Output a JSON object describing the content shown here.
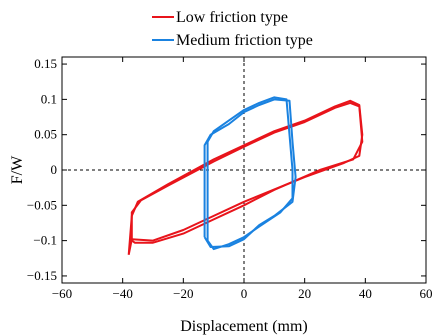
{
  "chart_data": {
    "type": "line",
    "xlabel": "Displacement (mm)",
    "ylabel": "F/W",
    "xlim": [
      -60,
      60
    ],
    "ylim": [
      -0.16,
      0.16
    ],
    "x_ticks": [
      -60,
      -40,
      -20,
      0,
      20,
      40,
      60
    ],
    "x_tick_labels": [
      "−60",
      "−40",
      "−20",
      "0",
      "20",
      "40",
      "60"
    ],
    "y_ticks": [
      -0.15,
      -0.1,
      -0.05,
      0,
      0.05,
      0.1,
      0.15
    ],
    "y_tick_labels": [
      "−0.15",
      "−0.1",
      "−0.05",
      "0",
      "0.05",
      "0.1",
      "0.15"
    ],
    "grid": false,
    "zero_lines": "dashed",
    "legend_position": "top, outside plot",
    "series": [
      {
        "name": "Low friction type",
        "color": "#e8141b",
        "loops": [
          [
            [
              -38,
              -0.12
            ],
            [
              -37,
              -0.065
            ],
            [
              -35,
              -0.045
            ],
            [
              -25,
              -0.02
            ],
            [
              -10,
              0.015
            ],
            [
              0,
              0.035
            ],
            [
              10,
              0.055
            ],
            [
              20,
              0.07
            ],
            [
              30,
              0.09
            ],
            [
              35,
              0.098
            ],
            [
              38,
              0.092
            ],
            [
              39,
              0.05
            ],
            [
              38,
              0.02
            ],
            [
              33,
              0.01
            ],
            [
              20,
              -0.01
            ],
            [
              0,
              -0.045
            ],
            [
              -10,
              -0.065
            ],
            [
              -20,
              -0.085
            ],
            [
              -30,
              -0.1
            ],
            [
              -37,
              -0.098
            ],
            [
              -38,
              -0.12
            ]
          ],
          [
            [
              -37,
              -0.1
            ],
            [
              -37,
              -0.06
            ],
            [
              -34,
              -0.043
            ],
            [
              -25,
              -0.022
            ],
            [
              -10,
              0.012
            ],
            [
              0,
              0.033
            ],
            [
              10,
              0.053
            ],
            [
              20,
              0.068
            ],
            [
              30,
              0.088
            ],
            [
              35,
              0.095
            ],
            [
              38,
              0.09
            ],
            [
              39,
              0.04
            ],
            [
              36,
              0.015
            ],
            [
              25,
              0.0
            ],
            [
              10,
              -0.028
            ],
            [
              0,
              -0.05
            ],
            [
              -10,
              -0.07
            ],
            [
              -20,
              -0.09
            ],
            [
              -30,
              -0.103
            ],
            [
              -36,
              -0.103
            ],
            [
              -37,
              -0.1
            ]
          ]
        ]
      },
      {
        "name": "Medium friction type",
        "color": "#1a82e0",
        "loops": [
          [
            [
              -12,
              -0.1
            ],
            [
              -12,
              0.04
            ],
            [
              -10,
              0.055
            ],
            [
              -5,
              0.07
            ],
            [
              0,
              0.085
            ],
            [
              5,
              0.095
            ],
            [
              10,
              0.103
            ],
            [
              14,
              0.1
            ],
            [
              15,
              0.05
            ],
            [
              16,
              0.0
            ],
            [
              16,
              -0.04
            ],
            [
              12,
              -0.06
            ],
            [
              5,
              -0.08
            ],
            [
              0,
              -0.095
            ],
            [
              -5,
              -0.105
            ],
            [
              -10,
              -0.112
            ],
            [
              -12,
              -0.1
            ]
          ],
          [
            [
              -13,
              -0.095
            ],
            [
              -13,
              0.035
            ],
            [
              -11,
              0.05
            ],
            [
              -5,
              0.065
            ],
            [
              0,
              0.082
            ],
            [
              5,
              0.092
            ],
            [
              10,
              0.1
            ],
            [
              15,
              0.098
            ],
            [
              16,
              0.04
            ],
            [
              17,
              -0.01
            ],
            [
              16,
              -0.045
            ],
            [
              10,
              -0.065
            ],
            [
              5,
              -0.078
            ],
            [
              0,
              -0.098
            ],
            [
              -5,
              -0.108
            ],
            [
              -11,
              -0.109
            ],
            [
              -13,
              -0.095
            ]
          ]
        ]
      }
    ]
  }
}
